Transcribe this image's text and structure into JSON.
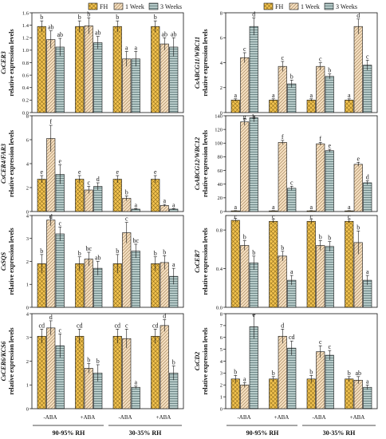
{
  "legend": [
    {
      "name": "FH",
      "pattern": "diamond"
    },
    {
      "name": "1 Week",
      "pattern": "diagonal"
    },
    {
      "name": "3 Weeks",
      "pattern": "horizontal"
    }
  ],
  "colors": {
    "FH": "#f2c24f",
    "1 Week": "#f5dfc0",
    "3 Weeks": "#b7cbc9",
    "axis": "#111111"
  },
  "x_groups": [
    "-ABA",
    "+ABA",
    "-ABA",
    "+ABA"
  ],
  "rh_labels": [
    "90-95% RH",
    "30-35% RH"
  ],
  "chart_data": [
    {
      "type": "bar",
      "gene": "CsCER3",
      "ylabel": "relative expression levels",
      "ylim": [
        0,
        1.6
      ],
      "yticks": [
        0,
        0.2,
        0.4,
        0.6,
        0.8,
        1.0,
        1.2,
        1.4,
        1.6
      ],
      "tick_decimals": 1,
      "categories": [
        "-ABA",
        "+ABA",
        "-ABA",
        "+ABA"
      ],
      "series": [
        {
          "name": "FH",
          "values": [
            1.38,
            1.38,
            1.38,
            1.38
          ],
          "errors": [
            0.09,
            0.09,
            0.09,
            0.09
          ],
          "letters": [
            "b",
            "b",
            "b",
            "b"
          ]
        },
        {
          "name": "1 Week",
          "values": [
            1.17,
            1.39,
            0.86,
            1.1
          ],
          "errors": [
            0.14,
            0.13,
            0.12,
            0.1
          ],
          "letters": [
            "ab",
            "b",
            "a",
            "ab"
          ]
        },
        {
          "name": "3 Weeks",
          "values": [
            1.05,
            1.12,
            0.86,
            1.05
          ],
          "errors": [
            0.14,
            0.1,
            0.12,
            0.15
          ],
          "letters": [
            "ab",
            "ab",
            "a",
            "ab"
          ]
        }
      ]
    },
    {
      "type": "bar",
      "gene": "CsABCG11/WBC11",
      "ylabel": "relative expression levels",
      "ylim": [
        0,
        8
      ],
      "yticks": [
        0,
        2,
        4,
        6,
        8
      ],
      "tick_decimals": 0,
      "categories": [
        "-ABA",
        "+ABA",
        "-ABA",
        "+ABA"
      ],
      "series": [
        {
          "name": "FH",
          "values": [
            1.0,
            1.0,
            1.0,
            1.0
          ],
          "errors": [
            0.1,
            0.1,
            0.1,
            0.1
          ],
          "letters": [
            "a",
            "a",
            "a",
            "a"
          ]
        },
        {
          "name": "1 Week",
          "values": [
            4.4,
            3.7,
            3.7,
            6.9
          ],
          "errors": [
            0.4,
            0.4,
            0.3,
            0.6
          ],
          "letters": [
            "c",
            "c",
            "c",
            "d"
          ]
        },
        {
          "name": "3 Weeks",
          "values": [
            6.9,
            2.3,
            2.9,
            3.8
          ],
          "errors": [
            0.7,
            0.3,
            0.2,
            0.4
          ],
          "letters": [
            "d",
            "b",
            "b",
            "c"
          ]
        }
      ]
    },
    {
      "type": "bar",
      "gene": "CsCER4/FAR3",
      "ylabel": "relative expression levels",
      "ylim": [
        0,
        8
      ],
      "yticks": [
        0,
        2,
        4,
        6,
        8
      ],
      "tick_decimals": 0,
      "categories": [
        "-ABA",
        "+ABA",
        "-ABA",
        "+ABA"
      ],
      "series": [
        {
          "name": "FH",
          "values": [
            2.7,
            2.7,
            2.7,
            2.7
          ],
          "errors": [
            0.3,
            0.3,
            0.3,
            0.3
          ],
          "letters": [
            "e",
            "e",
            "e",
            "e"
          ]
        },
        {
          "name": "1 Week",
          "values": [
            6.1,
            1.8,
            1.1,
            0.5
          ],
          "errors": [
            1.1,
            0.3,
            0.2,
            0.1
          ],
          "letters": [
            "f",
            "c",
            "b",
            "a"
          ]
        },
        {
          "name": "3 Weeks",
          "values": [
            3.1,
            2.1,
            0.2,
            0.2
          ],
          "errors": [
            0.8,
            0.3,
            0.05,
            0.05
          ],
          "letters": [
            "e",
            "d",
            "a",
            "a"
          ]
        }
      ]
    },
    {
      "type": "bar",
      "gene": "CsABCG12/WBC12",
      "ylabel": "relative expression levels",
      "ylim": [
        0,
        140
      ],
      "yticks": [
        0,
        20,
        40,
        60,
        80,
        100,
        120,
        140
      ],
      "tick_decimals": 0,
      "categories": [
        "-ABA",
        "+ABA",
        "-ABA",
        "+ABA"
      ],
      "series": [
        {
          "name": "FH",
          "values": [
            1.0,
            1.0,
            1.0,
            1.0
          ],
          "errors": [
            0.3,
            0.3,
            0.3,
            0.3
          ],
          "letters": [
            "a",
            "a",
            "a",
            "a"
          ]
        },
        {
          "name": "1 Week",
          "values": [
            131,
            101,
            99,
            69
          ],
          "errors": [
            5,
            3,
            2,
            3
          ],
          "letters": [
            "g",
            "f",
            "f",
            "e"
          ]
        },
        {
          "name": "3 Weeks",
          "values": [
            137,
            34,
            89,
            42
          ],
          "errors": [
            6,
            3,
            2,
            3
          ],
          "letters": [
            "h",
            "c",
            "e",
            "d"
          ]
        }
      ]
    },
    {
      "type": "bar",
      "gene": "CsSQS",
      "ylabel": "relative expression levels",
      "ylim": [
        0,
        4
      ],
      "yticks": [
        0,
        1,
        2,
        3,
        4
      ],
      "tick_decimals": 0,
      "categories": [
        "-ABA",
        "+ABA",
        "-ABA",
        "+ABA"
      ],
      "series": [
        {
          "name": "FH",
          "values": [
            1.9,
            1.9,
            1.9,
            1.9
          ],
          "errors": [
            0.4,
            0.3,
            0.4,
            0.3
          ],
          "letters": [
            "b",
            "b",
            "b",
            "b"
          ]
        },
        {
          "name": "1 Week",
          "values": [
            3.8,
            2.1,
            3.25,
            1.95
          ],
          "errors": [
            0.25,
            0.3,
            0.45,
            0.3
          ],
          "letters": [
            "d",
            "bc",
            "c",
            "b"
          ]
        },
        {
          "name": "3 Weeks",
          "values": [
            3.2,
            1.7,
            2.45,
            1.35
          ],
          "errors": [
            0.3,
            0.3,
            0.3,
            0.35
          ],
          "letters": [
            "c",
            "ab",
            "bc",
            "a"
          ]
        }
      ]
    },
    {
      "type": "bar",
      "gene": "CsCER7",
      "ylabel": "relative expression levels",
      "ylim": [
        0,
        0.95
      ],
      "yticks": [
        0,
        0.4,
        0.8
      ],
      "tick_decimals": 1,
      "categories": [
        "-ABA",
        "+ABA",
        "-ABA",
        "+ABA"
      ],
      "series": [
        {
          "name": "FH",
          "values": [
            0.9,
            0.89,
            0.89,
            0.89
          ],
          "errors": [
            0.02,
            0.02,
            0.02,
            0.02
          ],
          "letters": [
            "c",
            "c",
            "c",
            "c"
          ]
        },
        {
          "name": "1 Week",
          "values": [
            0.64,
            0.53,
            0.64,
            0.67
          ],
          "errors": [
            0.05,
            0.05,
            0.05,
            0.12
          ],
          "letters": [
            "b",
            "b",
            "b",
            "b"
          ]
        },
        {
          "name": "3 Weeks",
          "values": [
            0.46,
            0.28,
            0.63,
            0.28
          ],
          "errors": [
            0.07,
            0.05,
            0.05,
            0.05
          ],
          "letters": [
            "b",
            "a",
            "b",
            "a"
          ]
        }
      ]
    },
    {
      "type": "bar",
      "gene": "CsCER6/KCS6",
      "ylabel": "relative expression levels",
      "ylim": [
        0,
        4
      ],
      "yticks": [
        0,
        1,
        2,
        3,
        4
      ],
      "tick_decimals": 0,
      "categories": [
        "-ABA",
        "+ABA",
        "-ABA",
        "+ABA"
      ],
      "series": [
        {
          "name": "FH",
          "values": [
            3.05,
            3.05,
            3.05,
            3.05
          ],
          "errors": [
            0.3,
            0.3,
            0.3,
            0.3
          ],
          "letters": [
            "cd",
            "cd",
            "cd",
            "cd"
          ]
        },
        {
          "name": "1 Week",
          "values": [
            3.4,
            1.7,
            2.95,
            3.5
          ],
          "errors": [
            0.3,
            0.2,
            0.4,
            0.25
          ],
          "letters": [
            "d",
            "b",
            "c",
            "d"
          ]
        },
        {
          "name": "3 Weeks",
          "values": [
            2.65,
            1.5,
            0.9,
            1.5
          ],
          "errors": [
            0.5,
            0.35,
            0.05,
            0.3
          ],
          "letters": [
            "c",
            "b",
            "a",
            "b"
          ]
        }
      ]
    },
    {
      "type": "bar",
      "gene": "CsCD2",
      "ylabel": "relative expression levels",
      "ylim": [
        0,
        8
      ],
      "yticks": [
        0,
        1,
        2,
        3,
        4,
        5,
        6,
        7,
        8
      ],
      "tick_decimals": 0,
      "categories": [
        "-ABA",
        "+ABA",
        "-ABA",
        "+ABA"
      ],
      "series": [
        {
          "name": "FH",
          "values": [
            2.5,
            2.5,
            2.5,
            2.5
          ],
          "errors": [
            0.3,
            0.2,
            0.3,
            0.2
          ],
          "letters": [
            "b",
            "b",
            "b",
            "b"
          ]
        },
        {
          "name": "1 Week",
          "values": [
            2.0,
            6.1,
            4.8,
            2.4
          ],
          "errors": [
            0.2,
            0.6,
            0.5,
            0.3
          ],
          "letters": [
            "a",
            "d",
            "c",
            "ab"
          ]
        },
        {
          "name": "3 Weeks",
          "values": [
            6.9,
            5.1,
            4.5,
            1.8
          ],
          "errors": [
            1.0,
            0.6,
            0.4,
            0.2
          ],
          "letters": [
            "e",
            "cd",
            "c",
            "a"
          ]
        }
      ]
    }
  ]
}
